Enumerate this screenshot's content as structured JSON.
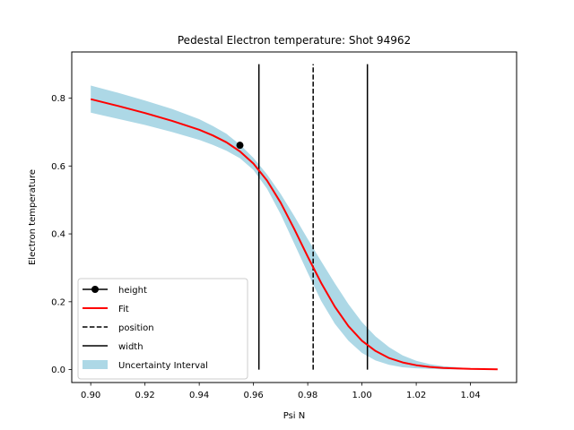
{
  "chart_data": {
    "type": "line",
    "title": "Pedestal Electron temperature: Shot 94962",
    "xlabel": "Psi N",
    "ylabel": "Electron temperature",
    "xlim": [
      0.893,
      1.057
    ],
    "ylim": [
      -0.038,
      0.936
    ],
    "xticks": [
      0.9,
      0.92,
      0.94,
      0.96,
      0.98,
      1.0,
      1.02,
      1.04
    ],
    "xtick_labels": [
      "0.90",
      "0.92",
      "0.94",
      "0.96",
      "0.98",
      "1.00",
      "1.02",
      "1.04"
    ],
    "yticks": [
      0.0,
      0.2,
      0.4,
      0.6,
      0.8
    ],
    "ytick_labels": [
      "0.0",
      "0.2",
      "0.4",
      "0.6",
      "0.8"
    ],
    "grid": false,
    "legend_position": "lower-left",
    "series": [
      {
        "name": "Fit",
        "color": "#ff0000",
        "x": [
          0.9,
          0.91,
          0.92,
          0.93,
          0.94,
          0.945,
          0.95,
          0.955,
          0.96,
          0.965,
          0.97,
          0.975,
          0.98,
          0.985,
          0.99,
          0.995,
          1.0,
          1.005,
          1.01,
          1.015,
          1.02,
          1.025,
          1.03,
          1.04,
          1.05
        ],
        "y": [
          0.797,
          0.777,
          0.756,
          0.733,
          0.707,
          0.69,
          0.67,
          0.643,
          0.607,
          0.557,
          0.492,
          0.415,
          0.333,
          0.255,
          0.185,
          0.128,
          0.085,
          0.055,
          0.034,
          0.021,
          0.013,
          0.008,
          0.005,
          0.002,
          0.001
        ]
      },
      {
        "name": "Uncertainty Interval",
        "color": "#add8e6",
        "x": [
          0.9,
          0.91,
          0.92,
          0.93,
          0.94,
          0.945,
          0.95,
          0.955,
          0.96,
          0.965,
          0.97,
          0.975,
          0.98,
          0.985,
          0.99,
          0.995,
          1.0,
          1.005,
          1.01,
          1.015,
          1.02,
          1.025,
          1.03,
          1.04,
          1.05
        ],
        "upper": [
          0.837,
          0.816,
          0.793,
          0.768,
          0.738,
          0.718,
          0.695,
          0.663,
          0.624,
          0.575,
          0.518,
          0.453,
          0.385,
          0.319,
          0.254,
          0.193,
          0.14,
          0.098,
          0.066,
          0.042,
          0.026,
          0.016,
          0.01,
          0.004,
          0.002
        ],
        "lower": [
          0.757,
          0.739,
          0.721,
          0.7,
          0.677,
          0.662,
          0.645,
          0.623,
          0.588,
          0.533,
          0.458,
          0.372,
          0.285,
          0.202,
          0.135,
          0.085,
          0.049,
          0.027,
          0.014,
          0.007,
          0.004,
          0.002,
          0.001,
          0.0,
          0.0
        ]
      },
      {
        "name": "height",
        "color": "#000000",
        "x": [
          0.955
        ],
        "y": [
          0.661
        ]
      },
      {
        "name": "position",
        "color": "#000000",
        "x": 0.982,
        "y": [
          0.0,
          0.9
        ]
      },
      {
        "name": "width",
        "color": "#000000",
        "x": [
          0.962,
          1.002
        ],
        "y": [
          0.0,
          0.9
        ]
      }
    ],
    "legend": [
      {
        "label": "height",
        "kind": "marker-line"
      },
      {
        "label": "Fit",
        "kind": "red-line"
      },
      {
        "label": "position",
        "kind": "dashed-line"
      },
      {
        "label": "width",
        "kind": "solid-line"
      },
      {
        "label": "Uncertainty Interval",
        "kind": "patch"
      }
    ]
  }
}
